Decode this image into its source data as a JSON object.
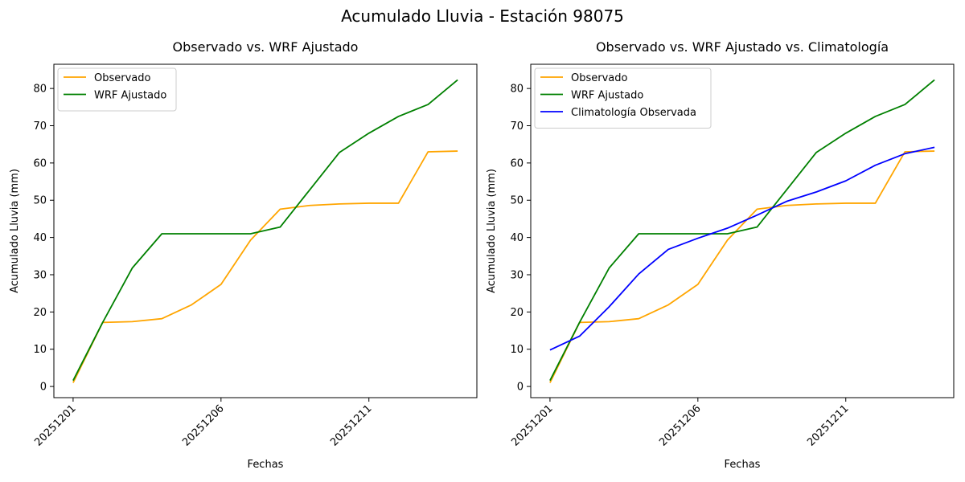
{
  "suptitle": "Acumulado Lluvia - Estación 98075",
  "chart_data": [
    {
      "type": "line",
      "title": "Observado vs. WRF Ajustado",
      "xlabel": "Fechas",
      "ylabel": "Acumulado Lluvia (mm)",
      "x": [
        "20251201",
        "20251202",
        "20251203",
        "20251204",
        "20251205",
        "20251206",
        "20251207",
        "20251208",
        "20251209",
        "20251210",
        "20251211",
        "20251212",
        "20251213",
        "20251214"
      ],
      "xticks": [
        "20251201",
        "20251206",
        "20251211"
      ],
      "yticks": [
        0,
        10,
        20,
        30,
        40,
        50,
        60,
        70,
        80
      ],
      "ylim": [
        -3,
        86.5
      ],
      "legend": "upper left",
      "grid": false,
      "series": [
        {
          "name": "Observado",
          "color": "#ffa500",
          "values": [
            1.0,
            17.2,
            17.4,
            18.2,
            21.9,
            27.4,
            39.3,
            47.6,
            48.6,
            49.0,
            49.2,
            49.2,
            63.0,
            63.2
          ]
        },
        {
          "name": "WRF Ajustado",
          "color": "#008000",
          "values": [
            1.6,
            17.2,
            31.8,
            41.0,
            41.0,
            41.0,
            41.0,
            42.8,
            52.8,
            62.8,
            68.0,
            72.5,
            75.7,
            82.3
          ]
        }
      ]
    },
    {
      "type": "line",
      "title": "Observado vs. WRF Ajustado vs. Climatología",
      "xlabel": "Fechas",
      "ylabel": "Acumulado Lluvia (mm)",
      "x": [
        "20251201",
        "20251202",
        "20251203",
        "20251204",
        "20251205",
        "20251206",
        "20251207",
        "20251208",
        "20251209",
        "20251210",
        "20251211",
        "20251212",
        "20251213",
        "20251214"
      ],
      "xticks": [
        "20251201",
        "20251206",
        "20251211"
      ],
      "yticks": [
        0,
        10,
        20,
        30,
        40,
        50,
        60,
        70,
        80
      ],
      "ylim": [
        -3,
        86.5
      ],
      "legend": "upper left",
      "grid": false,
      "series": [
        {
          "name": "Observado",
          "color": "#ffa500",
          "values": [
            1.0,
            17.2,
            17.4,
            18.2,
            21.9,
            27.4,
            39.3,
            47.6,
            48.6,
            49.0,
            49.2,
            49.2,
            63.0,
            63.2
          ]
        },
        {
          "name": "WRF Ajustado",
          "color": "#008000",
          "values": [
            1.6,
            17.2,
            31.8,
            41.0,
            41.0,
            41.0,
            41.0,
            42.8,
            52.8,
            62.8,
            68.0,
            72.5,
            75.7,
            82.3
          ]
        },
        {
          "name": "Climatología Observada",
          "color": "#0000ff",
          "values": [
            9.8,
            13.5,
            21.4,
            30.2,
            36.8,
            39.8,
            42.5,
            46.0,
            49.7,
            52.2,
            55.2,
            59.4,
            62.5,
            64.2
          ]
        }
      ]
    }
  ]
}
